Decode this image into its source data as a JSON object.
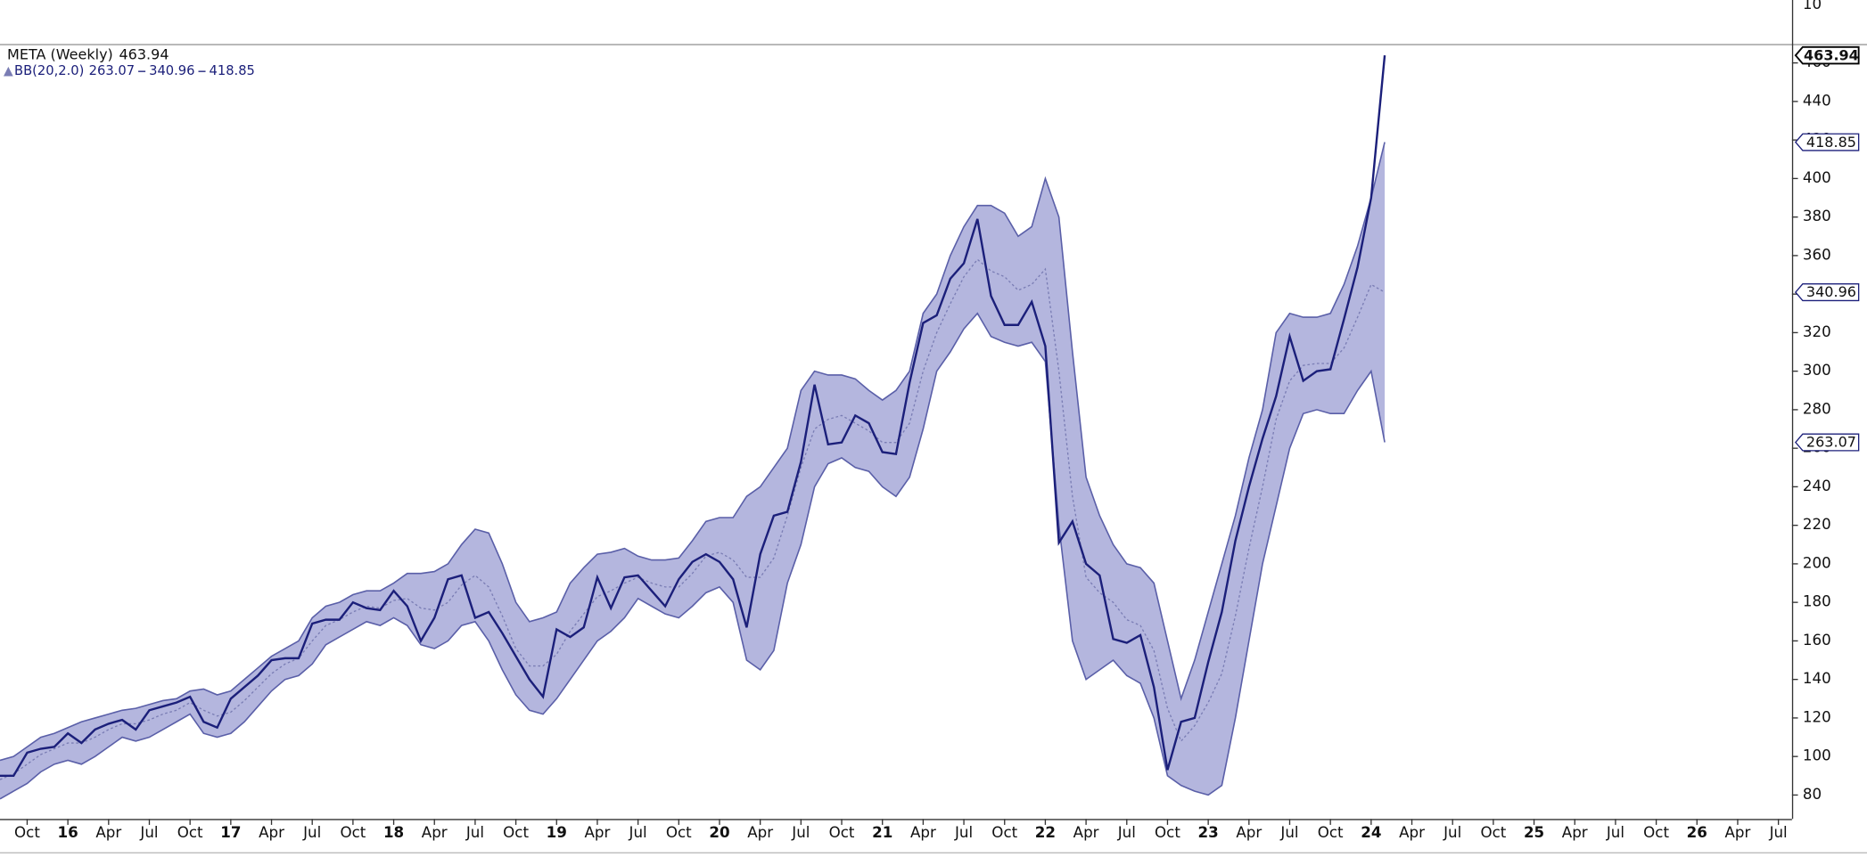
{
  "chart_data": {
    "type": "line",
    "x": [
      "2015-08",
      "2015-09",
      "2015-10",
      "2015-11",
      "2015-12",
      "2016-01",
      "2016-02",
      "2016-03",
      "2016-04",
      "2016-05",
      "2016-06",
      "2016-07",
      "2016-08",
      "2016-09",
      "2016-10",
      "2016-11",
      "2016-12",
      "2017-01",
      "2017-02",
      "2017-03",
      "2017-04",
      "2017-05",
      "2017-06",
      "2017-07",
      "2017-08",
      "2017-09",
      "2017-10",
      "2017-11",
      "2017-12",
      "2018-01",
      "2018-02",
      "2018-03",
      "2018-04",
      "2018-05",
      "2018-06",
      "2018-07",
      "2018-08",
      "2018-09",
      "2018-10",
      "2018-11",
      "2018-12",
      "2019-01",
      "2019-02",
      "2019-03",
      "2019-04",
      "2019-05",
      "2019-06",
      "2019-07",
      "2019-08",
      "2019-09",
      "2019-10",
      "2019-11",
      "2019-12",
      "2020-01",
      "2020-02",
      "2020-03",
      "2020-04",
      "2020-05",
      "2020-06",
      "2020-07",
      "2020-08",
      "2020-09",
      "2020-10",
      "2020-11",
      "2020-12",
      "2021-01",
      "2021-02",
      "2021-03",
      "2021-04",
      "2021-05",
      "2021-06",
      "2021-07",
      "2021-08",
      "2021-09",
      "2021-10",
      "2021-11",
      "2021-12",
      "2022-01",
      "2022-02",
      "2022-03",
      "2022-04",
      "2022-05",
      "2022-06",
      "2022-07",
      "2022-08",
      "2022-09",
      "2022-10",
      "2022-11",
      "2022-12",
      "2023-01",
      "2023-02",
      "2023-03",
      "2023-04",
      "2023-05",
      "2023-06",
      "2023-07",
      "2023-08",
      "2023-09",
      "2023-10",
      "2023-11",
      "2023-12",
      "2024-01",
      "2024-02"
    ],
    "series": [
      {
        "name": "META (Weekly)",
        "color": "#1b1f7a",
        "values": [
          90,
          90,
          102,
          104,
          105,
          112,
          107,
          114,
          117,
          119,
          114,
          124,
          126,
          128,
          131,
          118,
          115,
          130,
          136,
          142,
          150,
          151,
          151,
          169,
          171,
          171,
          180,
          177,
          176,
          186,
          178,
          160,
          172,
          192,
          194,
          172,
          175,
          164,
          152,
          140,
          131,
          166,
          162,
          167,
          193,
          177,
          193,
          194,
          186,
          178,
          192,
          201,
          205,
          201,
          192,
          167,
          205,
          225,
          227,
          253,
          293,
          262,
          263,
          277,
          273,
          258,
          257,
          294,
          325,
          329,
          348,
          356,
          379,
          339,
          324,
          324,
          336,
          313,
          211,
          222,
          200,
          194,
          161,
          159,
          163,
          136,
          93,
          118,
          120,
          149,
          175,
          212,
          240,
          265,
          287,
          318,
          295,
          300,
          301,
          327,
          354,
          390,
          463.94
        ]
      }
    ],
    "bands": {
      "name": "BB(20,2.0)",
      "fill": "#b4b6de",
      "color": "#5a5fa8",
      "middle_color": "#7a7db4",
      "upper": [
        98,
        100,
        105,
        110,
        112,
        115,
        118,
        120,
        122,
        124,
        125,
        127,
        129,
        130,
        134,
        135,
        132,
        134,
        140,
        146,
        152,
        156,
        160,
        172,
        178,
        180,
        184,
        186,
        186,
        190,
        195,
        195,
        196,
        200,
        210,
        218,
        216,
        200,
        180,
        170,
        172,
        175,
        190,
        198,
        205,
        206,
        208,
        204,
        202,
        202,
        203,
        212,
        222,
        224,
        224,
        235,
        240,
        250,
        260,
        290,
        300,
        298,
        298,
        296,
        290,
        285,
        290,
        300,
        330,
        340,
        360,
        375,
        386,
        386,
        382,
        370,
        375,
        400,
        380,
        310,
        245,
        225,
        210,
        200,
        198,
        190,
        160,
        130,
        150,
        175,
        200,
        225,
        255,
        280,
        320,
        330,
        328,
        328,
        330,
        345,
        365,
        390,
        418.85
      ],
      "middle": [
        88,
        91,
        96,
        101,
        104,
        107,
        107,
        110,
        114,
        117,
        117,
        119,
        122,
        124,
        128,
        124,
        121,
        123,
        129,
        136,
        143,
        148,
        151,
        160,
        168,
        171,
        175,
        178,
        177,
        181,
        182,
        177,
        176,
        180,
        189,
        194,
        188,
        173,
        156,
        147,
        147,
        153,
        165,
        174,
        183,
        186,
        190,
        193,
        190,
        188,
        188,
        195,
        204,
        206,
        202,
        193,
        193,
        203,
        225,
        250,
        270,
        275,
        277,
        273,
        269,
        263,
        263,
        273,
        300,
        320,
        335,
        349,
        358,
        352,
        349,
        342,
        345,
        353,
        300,
        235,
        193,
        185,
        180,
        171,
        168,
        155,
        125,
        108,
        116,
        128,
        143,
        173,
        208,
        240,
        275,
        295,
        303,
        304,
        304,
        312,
        328,
        345,
        340.96
      ],
      "lower": [
        78,
        82,
        86,
        92,
        96,
        98,
        96,
        100,
        105,
        110,
        108,
        110,
        114,
        118,
        122,
        112,
        110,
        112,
        118,
        126,
        134,
        140,
        142,
        148,
        158,
        162,
        166,
        170,
        168,
        172,
        168,
        158,
        156,
        160,
        168,
        170,
        160,
        145,
        132,
        124,
        122,
        130,
        140,
        150,
        160,
        165,
        172,
        182,
        178,
        174,
        172,
        178,
        185,
        188,
        180,
        150,
        145,
        155,
        190,
        210,
        240,
        252,
        255,
        250,
        248,
        240,
        235,
        245,
        270,
        300,
        310,
        322,
        330,
        318,
        315,
        313,
        315,
        305,
        220,
        160,
        140,
        145,
        150,
        142,
        138,
        120,
        90,
        85,
        82,
        80,
        85,
        120,
        160,
        200,
        230,
        260,
        278,
        280,
        278,
        278,
        290,
        300,
        263.07
      ]
    },
    "xlim": [
      "2015-08",
      "2026-08"
    ],
    "xticks": [
      {
        "value": "2015-10",
        "label": "Oct"
      },
      {
        "value": "2016-01",
        "label": "16"
      },
      {
        "value": "2016-04",
        "label": "Apr"
      },
      {
        "value": "2016-07",
        "label": "Jul"
      },
      {
        "value": "2016-10",
        "label": "Oct"
      },
      {
        "value": "2017-01",
        "label": "17"
      },
      {
        "value": "2017-04",
        "label": "Apr"
      },
      {
        "value": "2017-07",
        "label": "Jul"
      },
      {
        "value": "2017-10",
        "label": "Oct"
      },
      {
        "value": "2018-01",
        "label": "18"
      },
      {
        "value": "2018-04",
        "label": "Apr"
      },
      {
        "value": "2018-07",
        "label": "Jul"
      },
      {
        "value": "2018-10",
        "label": "Oct"
      },
      {
        "value": "2019-01",
        "label": "19"
      },
      {
        "value": "2019-04",
        "label": "Apr"
      },
      {
        "value": "2019-07",
        "label": "Jul"
      },
      {
        "value": "2019-10",
        "label": "Oct"
      },
      {
        "value": "2020-01",
        "label": "20"
      },
      {
        "value": "2020-04",
        "label": "Apr"
      },
      {
        "value": "2020-07",
        "label": "Jul"
      },
      {
        "value": "2020-10",
        "label": "Oct"
      },
      {
        "value": "2021-01",
        "label": "21"
      },
      {
        "value": "2021-04",
        "label": "Apr"
      },
      {
        "value": "2021-07",
        "label": "Jul"
      },
      {
        "value": "2021-10",
        "label": "Oct"
      },
      {
        "value": "2022-01",
        "label": "22"
      },
      {
        "value": "2022-04",
        "label": "Apr"
      },
      {
        "value": "2022-07",
        "label": "Jul"
      },
      {
        "value": "2022-10",
        "label": "Oct"
      },
      {
        "value": "2023-01",
        "label": "23"
      },
      {
        "value": "2023-04",
        "label": "Apr"
      },
      {
        "value": "2023-07",
        "label": "Jul"
      },
      {
        "value": "2023-10",
        "label": "Oct"
      },
      {
        "value": "2024-01",
        "label": "24"
      },
      {
        "value": "2024-04",
        "label": "Apr"
      },
      {
        "value": "2024-07",
        "label": "Jul"
      },
      {
        "value": "2024-10",
        "label": "Oct"
      },
      {
        "value": "2025-01",
        "label": "25"
      },
      {
        "value": "2025-04",
        "label": "Apr"
      },
      {
        "value": "2025-07",
        "label": "Jul"
      },
      {
        "value": "2025-10",
        "label": "Oct"
      },
      {
        "value": "2026-01",
        "label": "26"
      },
      {
        "value": "2026-04",
        "label": "Apr"
      },
      {
        "value": "2026-07",
        "label": "Jul"
      }
    ],
    "ylim": [
      67.6,
      469.8
    ],
    "yticks": [
      80,
      100,
      120,
      140,
      160,
      180,
      200,
      220,
      240,
      260,
      280,
      300,
      320,
      340,
      360,
      380,
      400,
      420,
      440,
      460
    ],
    "upper_panel": {
      "yticks": [
        10
      ]
    }
  }
}
